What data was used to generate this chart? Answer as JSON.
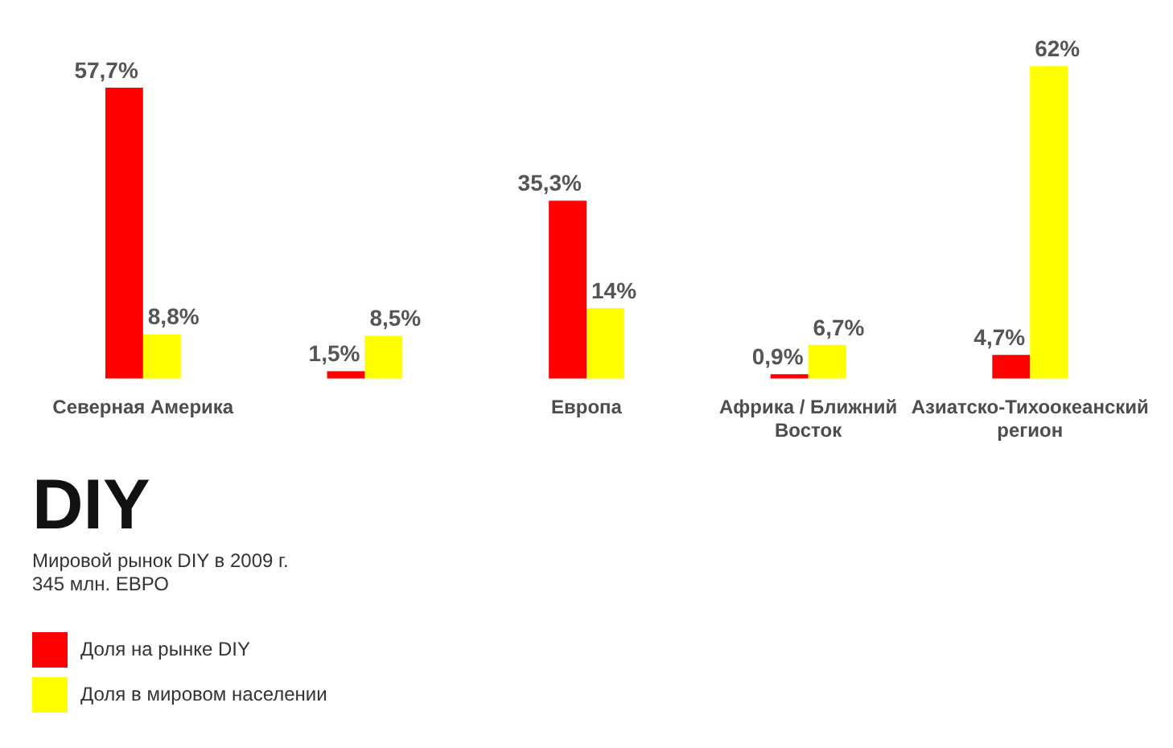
{
  "chart_data": {
    "type": "bar",
    "title": "DIY",
    "subtitle": "Мировой рынок DIY в 2009 г.\n345 млн. ЕВРО",
    "categories": [
      "Северная Америка",
      null,
      "Европа",
      "Африка / Ближний Восток",
      "Азиатско-Тихоокеанский регион"
    ],
    "series": [
      {
        "name": "Доля на рынке DIY",
        "color": "#ff0000",
        "values": [
          57.7,
          1.5,
          35.3,
          0.9,
          4.7
        ],
        "value_labels": [
          "57,7%",
          "1,5%",
          "35,3%",
          "0,9%",
          "4,7%"
        ]
      },
      {
        "name": "Доля в мировом населении",
        "color": "#ffff00",
        "values": [
          8.8,
          8.5,
          14,
          6.7,
          62
        ],
        "value_labels": [
          "8,8%",
          "8,5%",
          "14%",
          "6,7%",
          "62%"
        ]
      }
    ],
    "legend": "bottom left"
  }
}
